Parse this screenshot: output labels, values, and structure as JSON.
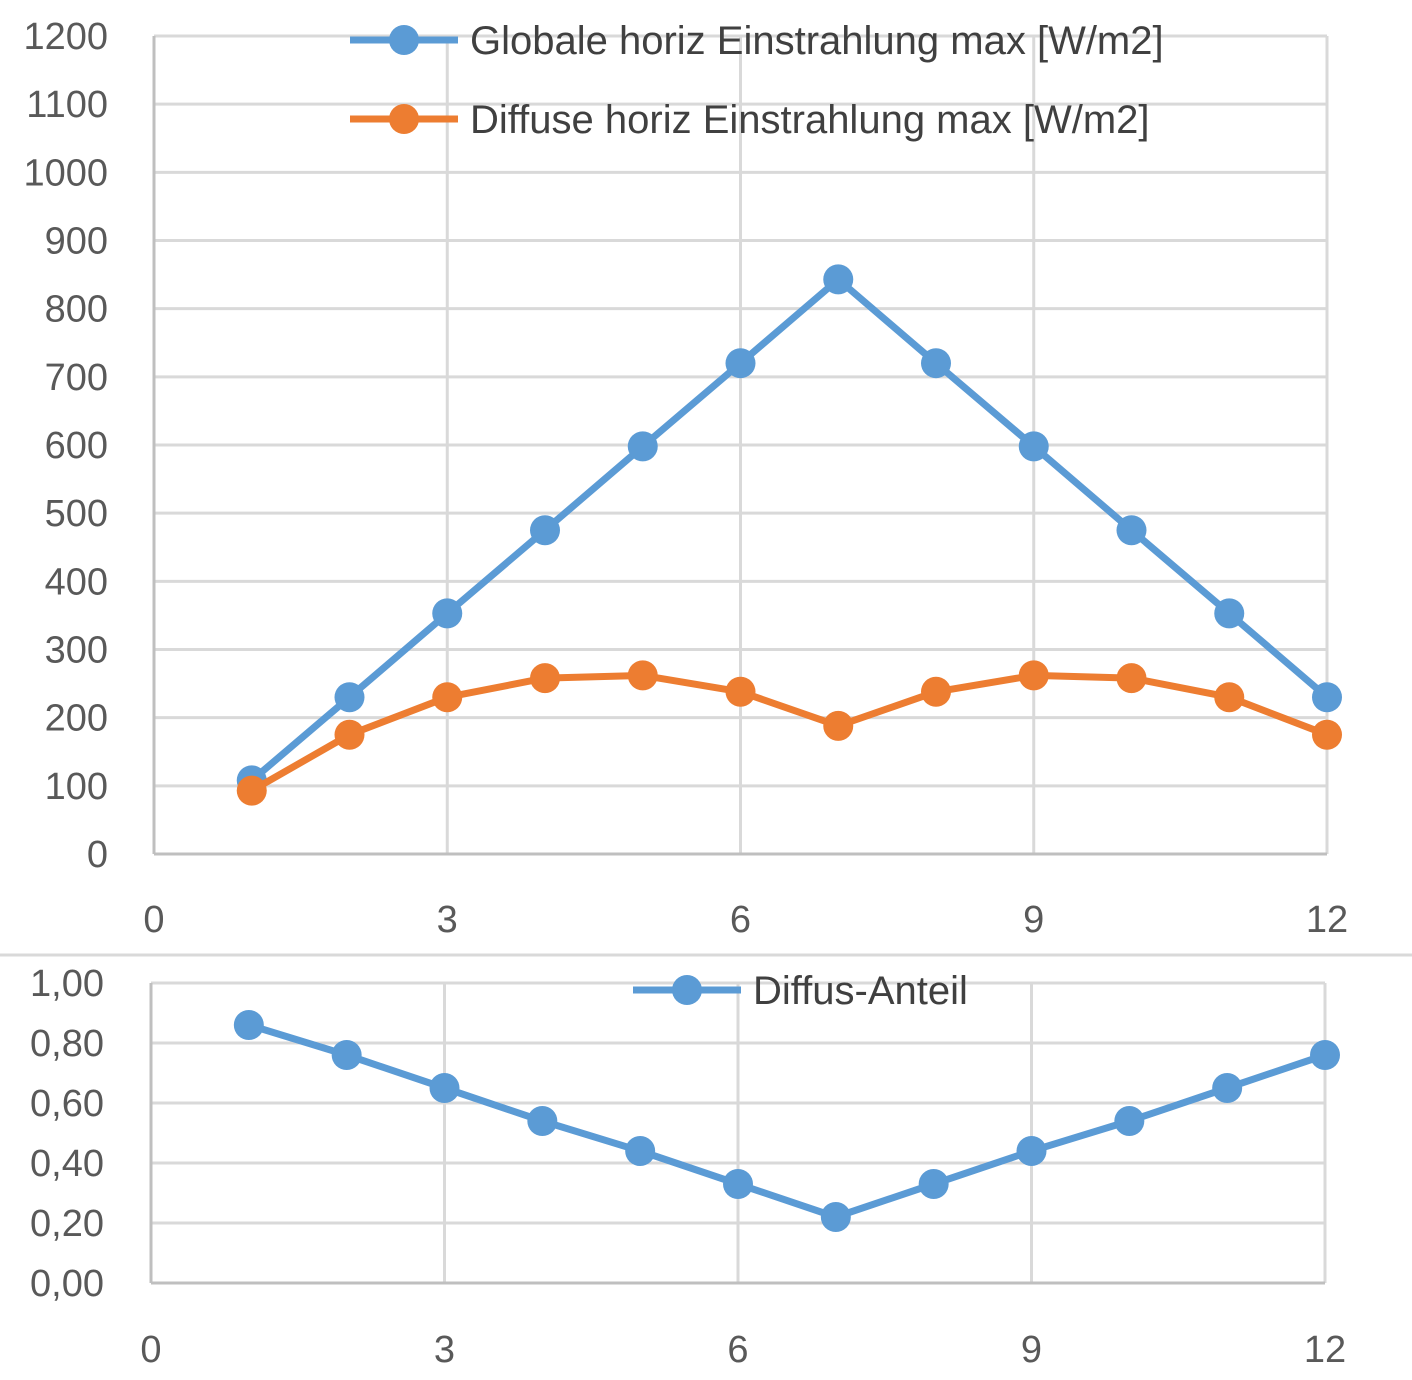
{
  "chart_data": [
    {
      "type": "line",
      "xlim": [
        0,
        12
      ],
      "ylim": [
        0,
        1200
      ],
      "xticks": [
        "0",
        "3",
        "6",
        "9",
        "12"
      ],
      "yticks": [
        "0",
        "100",
        "200",
        "300",
        "400",
        "500",
        "600",
        "700",
        "800",
        "900",
        "1000",
        "1100",
        "1200"
      ],
      "grid": true,
      "legend_position": "top",
      "x": [
        1,
        2,
        3,
        4,
        5,
        6,
        7,
        8,
        9,
        10,
        11,
        12
      ],
      "series": [
        {
          "name": "Globale horiz Einstrahlung max [W/m2]",
          "color": "#5b9bd5",
          "values": [
            108,
            230,
            353,
            475,
            598,
            720,
            843,
            720,
            598,
            475,
            353,
            230
          ]
        },
        {
          "name": "Diffuse horiz Einstrahlung max [W/m2]",
          "color": "#ed7d31",
          "values": [
            93,
            175,
            230,
            258,
            262,
            238,
            188,
            238,
            262,
            258,
            230,
            175
          ]
        }
      ]
    },
    {
      "type": "line",
      "xlim": [
        0,
        12
      ],
      "ylim": [
        0,
        1
      ],
      "xticks": [
        "0",
        "3",
        "6",
        "9",
        "12"
      ],
      "yticks": [
        "0,00",
        "0,20",
        "0,40",
        "0,60",
        "0,80",
        "1,00"
      ],
      "grid": true,
      "legend_position": "top",
      "x": [
        1,
        2,
        3,
        4,
        5,
        6,
        7,
        8,
        9,
        10,
        11,
        12
      ],
      "series": [
        {
          "name": "Diffus-Anteil",
          "color": "#5b9bd5",
          "values": [
            0.86,
            0.76,
            0.65,
            0.54,
            0.44,
            0.33,
            0.22,
            0.33,
            0.44,
            0.54,
            0.65,
            0.76
          ]
        }
      ]
    }
  ]
}
